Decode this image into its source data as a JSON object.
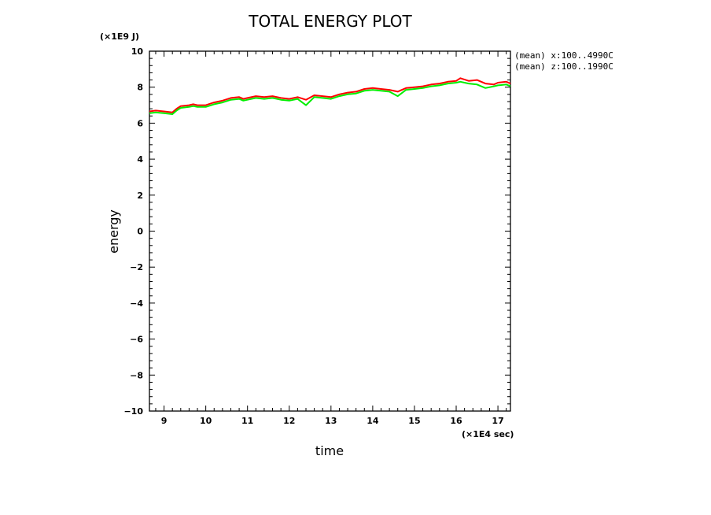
{
  "chart_data": {
    "type": "line",
    "title": "TOTAL ENERGY PLOT",
    "xlabel": "time",
    "ylabel": "energy",
    "x_unit": "(×1E4 sec)",
    "y_unit": "(×1E9 J)",
    "xlim": [
      8.65,
      17.3
    ],
    "ylim": [
      -10,
      10
    ],
    "x_ticks": [
      9,
      10,
      11,
      12,
      13,
      14,
      15,
      16,
      17
    ],
    "y_ticks": [
      -10,
      -8,
      -6,
      -4,
      -2,
      0,
      2,
      4,
      6,
      8,
      10
    ],
    "y_tick_labels": [
      "−10",
      "−8",
      "−6",
      "−4",
      "−2",
      "0",
      "2",
      "4",
      "6",
      "8",
      "10"
    ],
    "grid": false,
    "legend_position": "top-right, outside plot",
    "annotations": [
      "(mean) x:100..4990C",
      "(mean) z:100..1990C"
    ],
    "x": [
      8.65,
      8.8,
      9.0,
      9.2,
      9.3,
      9.4,
      9.6,
      9.7,
      9.8,
      10.0,
      10.2,
      10.4,
      10.6,
      10.8,
      10.9,
      11.0,
      11.2,
      11.4,
      11.6,
      11.8,
      12.0,
      12.2,
      12.4,
      12.6,
      12.8,
      13.0,
      13.2,
      13.4,
      13.6,
      13.8,
      14.0,
      14.2,
      14.4,
      14.6,
      14.8,
      15.0,
      15.2,
      15.4,
      15.6,
      15.8,
      16.0,
      16.1,
      16.3,
      16.5,
      16.7,
      16.9,
      17.0,
      17.2,
      17.3
    ],
    "series": [
      {
        "color": "#ff0000",
        "values": [
          6.65,
          6.7,
          6.65,
          6.6,
          6.8,
          6.95,
          7.0,
          7.05,
          7.0,
          7.0,
          7.15,
          7.25,
          7.4,
          7.45,
          7.35,
          7.4,
          7.5,
          7.45,
          7.5,
          7.4,
          7.35,
          7.45,
          7.3,
          7.55,
          7.5,
          7.45,
          7.6,
          7.7,
          7.75,
          7.9,
          7.95,
          7.9,
          7.85,
          7.75,
          7.95,
          8.0,
          8.05,
          8.15,
          8.2,
          8.3,
          8.35,
          8.5,
          8.35,
          8.4,
          8.2,
          8.15,
          8.25,
          8.3,
          8.2
        ]
      },
      {
        "color": "#00ee00",
        "values": [
          6.55,
          6.6,
          6.55,
          6.5,
          6.7,
          6.85,
          6.9,
          6.95,
          6.9,
          6.9,
          7.05,
          7.15,
          7.3,
          7.35,
          7.25,
          7.3,
          7.4,
          7.35,
          7.4,
          7.3,
          7.25,
          7.35,
          7.0,
          7.45,
          7.4,
          7.35,
          7.5,
          7.6,
          7.65,
          7.8,
          7.85,
          7.8,
          7.75,
          7.5,
          7.85,
          7.9,
          7.95,
          8.05,
          8.1,
          8.2,
          8.25,
          8.3,
          8.2,
          8.15,
          7.95,
          8.05,
          8.1,
          8.15,
          8.05
        ]
      }
    ]
  }
}
